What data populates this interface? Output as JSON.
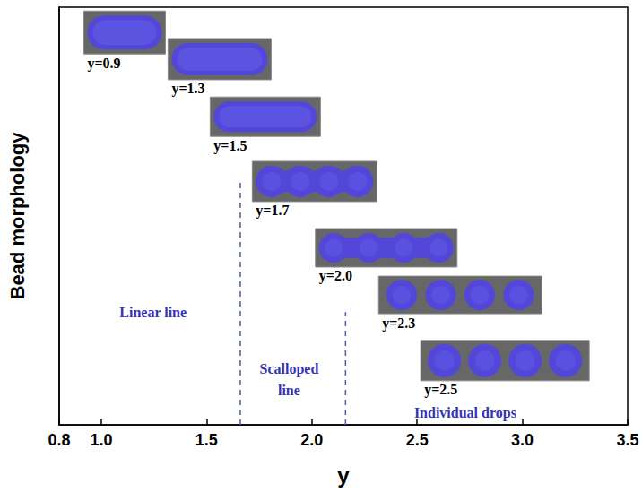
{
  "chart_data": {
    "type": "morphology",
    "x_label": "y",
    "y_label": "Bead morphology",
    "xlim": [
      0.8,
      3.5
    ],
    "xticks": [
      0.8,
      {
        "value": 1,
        "label": "1.0"
      },
      1.5,
      {
        "value": 2,
        "label": "2.0"
      },
      2.5,
      {
        "value": 3,
        "label": "3.0"
      },
      3.5
    ],
    "tick_labels": "x",
    "color": "#5247d8",
    "samples": [
      {
        "value": 0.9,
        "label": "y=0.9"
      },
      {
        "value": 1.3,
        "label": "y=1.3"
      },
      {
        "value": 1.5,
        "label": "y=1.5"
      },
      {
        "value": 1.7,
        "label": "y=1.7"
      },
      {
        "value": 2.0,
        "label": "y=2.0"
      },
      {
        "value": 2.3,
        "label": "y=2.3"
      },
      {
        "value": 2.5,
        "label": "y=2.5"
      }
    ],
    "boundaries": [
      1.66,
      2.16
    ],
    "regions": [
      "Linear line",
      "Scalloped line",
      "Individual drops"
    ]
  }
}
